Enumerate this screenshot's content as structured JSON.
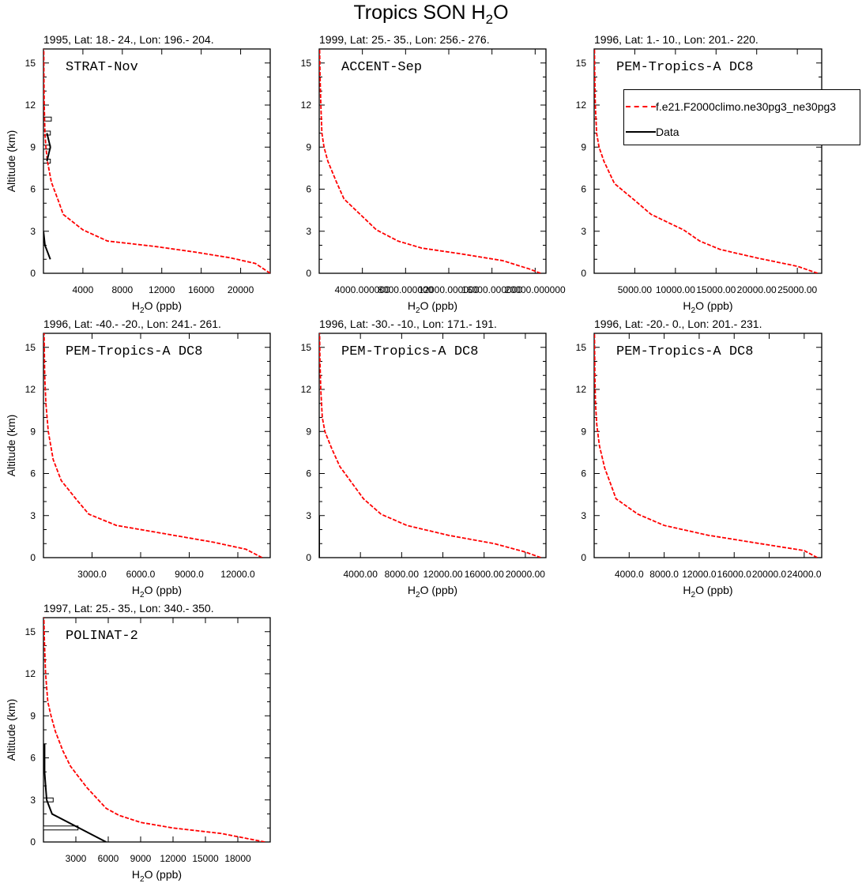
{
  "title": {
    "prefix": "Tropics SON H",
    "sub": "2",
    "suffix": "O"
  },
  "colors": {
    "model": "#ff0000",
    "data": "#000000"
  },
  "legend": {
    "model_label": "f.e21.F2000climo.ne30pg3_ne30pg3",
    "data_label": "Data"
  },
  "chart_data": [
    {
      "type": "line",
      "subtitle": "1995, Lat: 18.- 24., Lon: 196.- 204.",
      "campaign": "STRAT-Nov",
      "xlabel": "H2O (ppb)",
      "ylabel": "Altitude (km)",
      "xlim": [
        0,
        23000
      ],
      "ylim": [
        0,
        16
      ],
      "xticks": [
        4000,
        8000,
        12000,
        16000,
        20000
      ],
      "xticklabels": [
        "4000",
        "8000",
        "12000",
        "16000",
        "20000"
      ],
      "yticks": [
        0,
        3,
        6,
        9,
        12,
        15
      ],
      "series": [
        {
          "name": "model",
          "x": [
            23000,
            21500,
            19000,
            15500,
            11500,
            9000,
            6500,
            4000,
            2000,
            1500,
            800,
            400,
            250,
            150,
            80,
            50,
            30
          ],
          "y": [
            0,
            0.7,
            1.1,
            1.5,
            1.9,
            2.1,
            2.3,
            3.1,
            4.2,
            5.2,
            6.5,
            8,
            9,
            10,
            12,
            14,
            16
          ]
        },
        {
          "name": "data",
          "x": [
            700,
            150,
            0
          ],
          "y": [
            1,
            2,
            3
          ]
        },
        {
          "name": "data",
          "x": [
            350,
            700,
            350
          ],
          "y": [
            8,
            9,
            10
          ]
        }
      ],
      "errorbars": [
        {
          "y": 11,
          "x1": 0,
          "x2": 800
        },
        {
          "y": 10,
          "x1": 0,
          "x2": 700
        },
        {
          "y": 9,
          "x1": 0,
          "x2": 700
        },
        {
          "y": 8,
          "x1": 0,
          "x2": 700
        }
      ]
    },
    {
      "type": "line",
      "subtitle": "1999, Lat: 25.- 35., Lon: 256.- 276.",
      "campaign": "ACCENT-Sep",
      "xlabel": "H2O (ppb)",
      "ylabel": "Altitude (km)",
      "xlim": [
        0,
        21000
      ],
      "ylim": [
        0,
        16
      ],
      "xticks": [
        4000,
        8000,
        12000,
        16000,
        20000
      ],
      "xticklabels": [
        "4000.000000",
        "8000.000000",
        "12000.000000",
        "16000.000000",
        "20000.000000"
      ],
      "yticks": [
        0,
        3,
        6,
        9,
        12,
        15
      ],
      "series": [
        {
          "name": "model",
          "x": [
            20500,
            19500,
            17000,
            13000,
            9500,
            7300,
            5300,
            3800,
            2300,
            1600,
            800,
            450,
            250,
            150,
            80,
            40
          ],
          "y": [
            0,
            0.3,
            0.9,
            1.4,
            1.8,
            2.3,
            3.1,
            4.2,
            5.3,
            6.5,
            8,
            9,
            10,
            12,
            14,
            16
          ]
        }
      ],
      "errorbars": []
    },
    {
      "type": "line",
      "subtitle": "1996, Lat: 1.- 10., Lon: 201.- 220.",
      "campaign": "PEM-Tropics-A DC8",
      "xlabel": "H2O (ppb)",
      "ylabel": "Altitude (km)",
      "xlim": [
        0,
        28000
      ],
      "ylim": [
        0,
        16
      ],
      "xticks": [
        5000,
        10000,
        15000,
        20000,
        25000
      ],
      "xticklabels": [
        "5000.00",
        "10000.00",
        "15000.00",
        "20000.00",
        "25000.00"
      ],
      "yticks": [
        0,
        3,
        6,
        9,
        12,
        15
      ],
      "series": [
        {
          "name": "model",
          "x": [
            27500,
            25000,
            20000,
            15500,
            13000,
            11000,
            7000,
            5000,
            2500,
            1200,
            600,
            300,
            150,
            80,
            40
          ],
          "y": [
            0,
            0.5,
            1.1,
            1.7,
            2.3,
            3.1,
            4.2,
            5.2,
            6.4,
            8,
            9,
            10,
            12,
            14,
            16
          ]
        }
      ],
      "errorbars": []
    },
    {
      "type": "line",
      "subtitle": "1996, Lat: -40.- -20., Lon: 241.- 261.",
      "campaign": "PEM-Tropics-A DC8",
      "xlabel": "H2O (ppb)",
      "ylabel": "Altitude (km)",
      "xlim": [
        0,
        14000
      ],
      "ylim": [
        0,
        16
      ],
      "xticks": [
        3000,
        6000,
        9000,
        12000
      ],
      "xticklabels": [
        "3000.0",
        "6000.0",
        "9000.0",
        "12000.0"
      ],
      "yticks": [
        0,
        3,
        6,
        9,
        12,
        15
      ],
      "series": [
        {
          "name": "model",
          "x": [
            13500,
            12500,
            10500,
            7500,
            4500,
            2800,
            2000,
            1100,
            600,
            300,
            150,
            80,
            40
          ],
          "y": [
            0,
            0.6,
            1.1,
            1.7,
            2.3,
            3.1,
            4.2,
            5.5,
            7,
            9,
            11,
            13,
            16
          ]
        }
      ],
      "errorbars": []
    },
    {
      "type": "line",
      "subtitle": "1996, Lat: -30.- -10., Lon: 171.- 191.",
      "campaign": "PEM-Tropics-A DC8",
      "xlabel": "H2O (ppb)",
      "ylabel": "Altitude (km)",
      "xlim": [
        0,
        22000
      ],
      "ylim": [
        0,
        16
      ],
      "xticks": [
        4000,
        8000,
        12000,
        16000,
        20000
      ],
      "xticklabels": [
        "4000.00",
        "8000.00",
        "12000.00",
        "16000.00",
        "20000.00"
      ],
      "yticks": [
        0,
        3,
        6,
        9,
        12,
        15
      ],
      "series": [
        {
          "name": "model",
          "x": [
            21500,
            20000,
            17000,
            12500,
            8500,
            6000,
            4300,
            2000,
            1200,
            550,
            300,
            150,
            80,
            40
          ],
          "y": [
            0,
            0.4,
            1,
            1.6,
            2.3,
            3.1,
            4.2,
            6.5,
            7.8,
            9,
            10,
            12,
            14,
            16
          ]
        },
        {
          "name": "data",
          "x": [
            0,
            0
          ],
          "y": [
            0,
            3
          ]
        }
      ],
      "errorbars": []
    },
    {
      "type": "line",
      "subtitle": "1996, Lat: -20.- 0., Lon: 201.- 231.",
      "campaign": "PEM-Tropics-A DC8",
      "xlabel": "H2O (ppb)",
      "ylabel": "Altitude (km)",
      "xlim": [
        0,
        26000
      ],
      "ylim": [
        0,
        16
      ],
      "xticks": [
        4000,
        8000,
        12000,
        16000,
        20000,
        24000
      ],
      "xticklabels": [
        "4000.0",
        "8000.0",
        "12000.0",
        "16000.0",
        "20000.0",
        "24000.0"
      ],
      "yticks": [
        0,
        3,
        6,
        9,
        12,
        15
      ],
      "series": [
        {
          "name": "model",
          "x": [
            25500,
            24000,
            19000,
            13000,
            8000,
            5000,
            2500,
            1800,
            1200,
            600,
            300,
            150,
            80,
            40
          ],
          "y": [
            0,
            0.5,
            1,
            1.6,
            2.3,
            3.1,
            4.2,
            5.4,
            6.4,
            8,
            9.5,
            11,
            13,
            16
          ]
        }
      ],
      "errorbars": []
    },
    {
      "type": "line",
      "subtitle": "1997, Lat: 25.- 35., Lon: 340.- 350.",
      "campaign": "POLINAT-2",
      "xlabel": "H2O (ppb)",
      "ylabel": "Altitude (km)",
      "xlim": [
        0,
        21000
      ],
      "ylim": [
        0,
        16
      ],
      "xticks": [
        3000,
        6000,
        9000,
        12000,
        15000,
        18000
      ],
      "xticklabels": [
        "3000",
        "6000",
        "9000",
        "12000",
        "15000",
        "18000"
      ],
      "yticks": [
        0,
        3,
        6,
        9,
        12,
        15
      ],
      "series": [
        {
          "name": "model",
          "x": [
            20500,
            16500,
            12000,
            9000,
            7000,
            5800,
            4000,
            2500,
            1800,
            1100,
            700,
            400,
            200,
            100,
            40
          ],
          "y": [
            0,
            0.6,
            1,
            1.4,
            1.9,
            2.4,
            3.9,
            5.4,
            6.5,
            7.9,
            9,
            10,
            12,
            14,
            16
          ]
        },
        {
          "name": "data",
          "x": [
            5800,
            800,
            300,
            200,
            100,
            100
          ],
          "y": [
            0,
            2,
            3,
            4,
            5,
            7
          ]
        }
      ],
      "errorbars": [
        {
          "y": 1,
          "x1": 0,
          "x2": 3200
        },
        {
          "y": 3,
          "x1": 0,
          "x2": 900
        }
      ]
    }
  ]
}
